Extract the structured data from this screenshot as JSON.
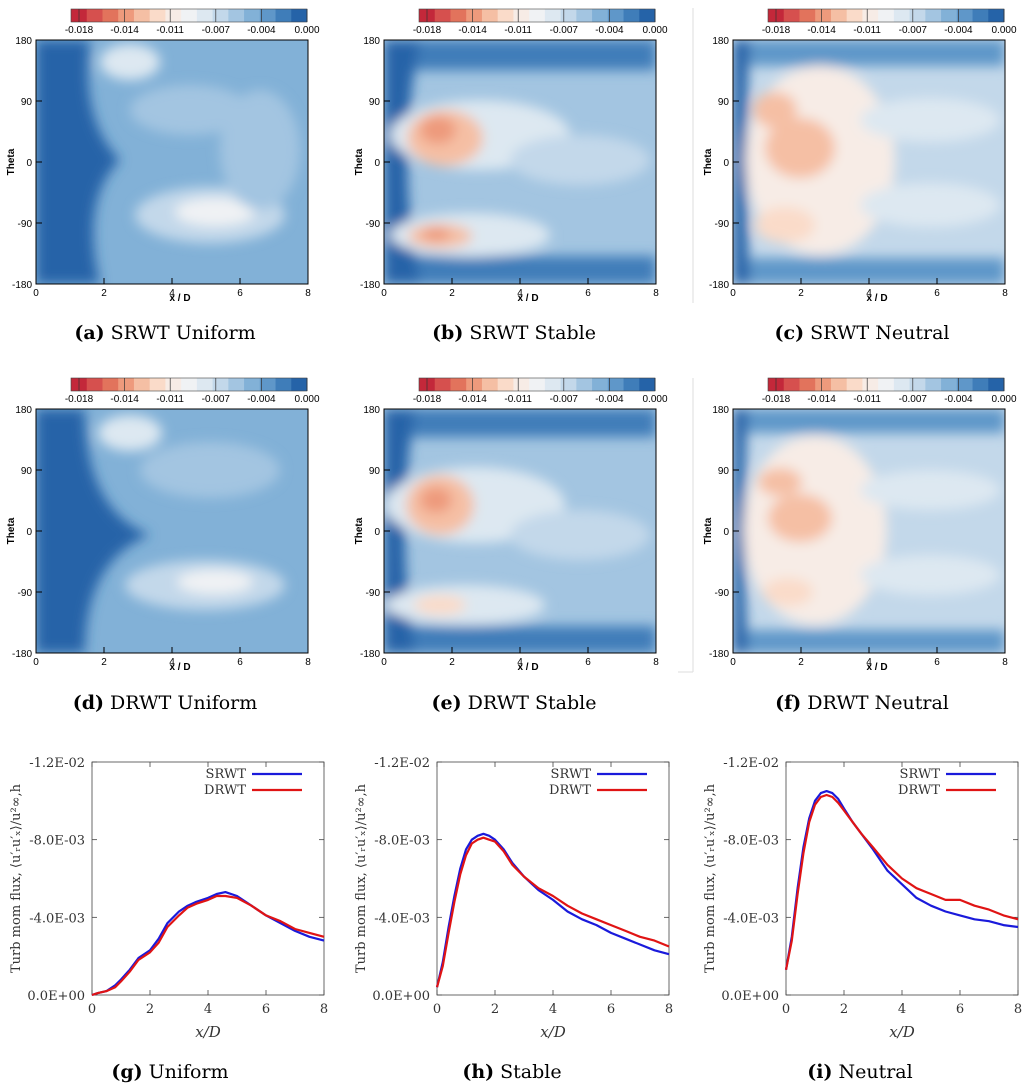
{
  "colorbar": {
    "colors": [
      "#c3283a",
      "#d6504e",
      "#e2735c",
      "#ee9a7c",
      "#f5bfa4",
      "#fadbc9",
      "#f7ece6",
      "#f0f2f4",
      "#dde8f1",
      "#c3d8ea",
      "#a3c5e1",
      "#82b1d7",
      "#5f97c9",
      "#3f7db9",
      "#2563a8"
    ],
    "tick_labels": [
      "-0.018",
      "-0.014",
      "-0.011",
      "-0.007",
      "-0.004",
      "0.000"
    ]
  },
  "contour_axes": {
    "x_ticks": [
      "0",
      "2",
      "4",
      "6",
      "8"
    ],
    "y_ticks": [
      "180",
      "90",
      "0",
      "-90",
      "-180"
    ],
    "xlabel": "x / D",
    "ylabel": "Theta"
  },
  "line_axes": {
    "y_ticks": [
      "-1.2E-02",
      "-8.0E-03",
      "-4.0E-03",
      "0.0E+00"
    ],
    "x_ticks": [
      "0",
      "2",
      "4",
      "6",
      "8"
    ],
    "xlabel": "x/D",
    "ylabel": "Turb mom flux, ⟨u′ᵣu′ₓ⟩/u²∞,h",
    "legend": [
      "SRWT",
      "DRWT"
    ],
    "colors": {
      "SRWT": "#1a1adb",
      "DRWT": "#e01414"
    }
  },
  "panels": [
    {
      "id": "a",
      "label": "(a)",
      "title": "SRWT Uniform"
    },
    {
      "id": "b",
      "label": "(b)",
      "title": "SRWT Stable"
    },
    {
      "id": "c",
      "label": "(c)",
      "title": "SRWT Neutral"
    },
    {
      "id": "d",
      "label": "(d)",
      "title": "DRWT Uniform"
    },
    {
      "id": "e",
      "label": "(e)",
      "title": "DRWT Stable"
    },
    {
      "id": "f",
      "label": "(f)",
      "title": "DRWT Neutral"
    },
    {
      "id": "g",
      "label": "(g)",
      "title": "Uniform"
    },
    {
      "id": "h",
      "label": "(h)",
      "title": "Stable"
    },
    {
      "id": "i",
      "label": "(i)",
      "title": "Neutral"
    }
  ],
  "chart_data": [
    {
      "id": "g",
      "type": "line",
      "title": "Uniform",
      "xlabel": "x/D",
      "ylabel": "Turb mom flux",
      "xlim": [
        0,
        8
      ],
      "ylim": [
        0,
        -0.012
      ],
      "x": [
        0,
        0.2,
        0.5,
        0.8,
        1.0,
        1.3,
        1.6,
        2.0,
        2.3,
        2.6,
        3.0,
        3.3,
        3.6,
        4.0,
        4.3,
        4.6,
        5.0,
        5.5,
        6.0,
        6.5,
        7.0,
        7.5,
        8.0
      ],
      "series": [
        {
          "name": "SRWT",
          "values": [
            0,
            -0.0001,
            -0.0002,
            -0.0005,
            -0.0008,
            -0.0013,
            -0.0019,
            -0.0023,
            -0.0029,
            -0.0037,
            -0.0043,
            -0.0046,
            -0.0048,
            -0.005,
            -0.0052,
            -0.0053,
            -0.0051,
            -0.0046,
            -0.0041,
            -0.0037,
            -0.0033,
            -0.003,
            -0.0028
          ]
        },
        {
          "name": "DRWT",
          "values": [
            0,
            -0.0001,
            -0.0002,
            -0.0004,
            -0.0007,
            -0.0012,
            -0.0018,
            -0.0022,
            -0.0027,
            -0.0035,
            -0.0041,
            -0.0045,
            -0.0047,
            -0.0049,
            -0.0051,
            -0.0051,
            -0.005,
            -0.0046,
            -0.0041,
            -0.0038,
            -0.0034,
            -0.0032,
            -0.003
          ]
        }
      ]
    },
    {
      "id": "h",
      "type": "line",
      "title": "Stable",
      "xlabel": "x/D",
      "ylabel": "Turb mom flux",
      "xlim": [
        0,
        8
      ],
      "ylim": [
        0,
        -0.012
      ],
      "x": [
        0,
        0.2,
        0.4,
        0.6,
        0.8,
        1.0,
        1.2,
        1.4,
        1.6,
        1.8,
        2.0,
        2.3,
        2.6,
        3.0,
        3.5,
        4.0,
        4.5,
        5.0,
        5.5,
        6.0,
        6.5,
        7.0,
        7.5,
        8.0
      ],
      "series": [
        {
          "name": "SRWT",
          "values": [
            -0.0004,
            -0.0017,
            -0.0035,
            -0.0051,
            -0.0065,
            -0.0075,
            -0.008,
            -0.0082,
            -0.0083,
            -0.0082,
            -0.008,
            -0.0075,
            -0.0068,
            -0.0061,
            -0.0054,
            -0.0049,
            -0.0043,
            -0.0039,
            -0.0036,
            -0.0032,
            -0.0029,
            -0.0026,
            -0.0023,
            -0.0021
          ]
        },
        {
          "name": "DRWT",
          "values": [
            -0.0004,
            -0.0015,
            -0.0032,
            -0.0048,
            -0.0062,
            -0.0072,
            -0.0078,
            -0.008,
            -0.0081,
            -0.008,
            -0.0079,
            -0.0074,
            -0.0067,
            -0.0061,
            -0.0055,
            -0.0051,
            -0.0046,
            -0.0042,
            -0.0039,
            -0.0036,
            -0.0033,
            -0.003,
            -0.0028,
            -0.0025
          ]
        }
      ]
    },
    {
      "id": "i",
      "type": "line",
      "title": "Neutral",
      "xlabel": "x/D",
      "ylabel": "Turb mom flux",
      "xlim": [
        0,
        8
      ],
      "ylim": [
        0,
        -0.012
      ],
      "x": [
        0,
        0.2,
        0.4,
        0.6,
        0.8,
        1.0,
        1.2,
        1.4,
        1.6,
        1.8,
        2.0,
        2.3,
        2.6,
        3.0,
        3.5,
        4.0,
        4.5,
        5.0,
        5.5,
        6.0,
        6.5,
        7.0,
        7.5,
        8.0
      ],
      "series": [
        {
          "name": "SRWT",
          "values": [
            -0.0013,
            -0.003,
            -0.0055,
            -0.0076,
            -0.0091,
            -0.01,
            -0.0104,
            -0.0105,
            -0.0104,
            -0.0101,
            -0.0096,
            -0.0089,
            -0.0083,
            -0.0075,
            -0.0064,
            -0.0057,
            -0.005,
            -0.0046,
            -0.0043,
            -0.0041,
            -0.0039,
            -0.0038,
            -0.0036,
            -0.0035
          ]
        },
        {
          "name": "DRWT",
          "values": [
            -0.0013,
            -0.0028,
            -0.0052,
            -0.0073,
            -0.0089,
            -0.0098,
            -0.0102,
            -0.0103,
            -0.0102,
            -0.0099,
            -0.0095,
            -0.0089,
            -0.0083,
            -0.0076,
            -0.0067,
            -0.006,
            -0.0055,
            -0.0052,
            -0.0049,
            -0.0049,
            -0.0046,
            -0.0044,
            -0.0041,
            -0.0039
          ]
        }
      ]
    }
  ]
}
